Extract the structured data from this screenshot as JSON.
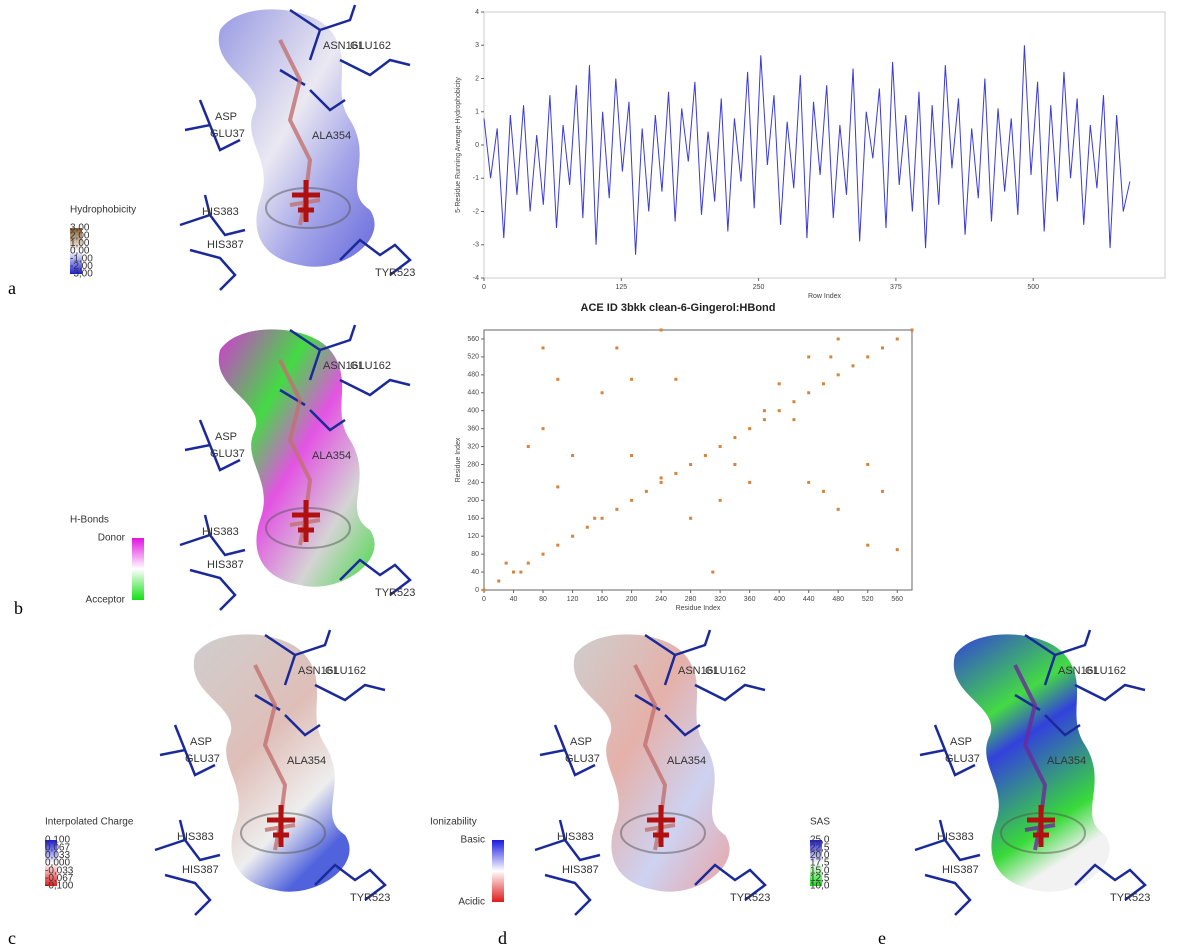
{
  "panels": [
    {
      "letter": "a",
      "legend_title": "Hydrophobicity",
      "legend_labels": [
        "3,00",
        "2,00",
        "1,00",
        "0,00",
        "-1,00",
        "-2,00",
        "-3,00"
      ]
    },
    {
      "letter": "b",
      "legend_title": "H-Bonds",
      "legend_labels": [
        "Donor",
        "Acceptor"
      ]
    },
    {
      "letter": "c",
      "legend_title": "Interpolated Charge",
      "legend_labels": [
        "0,100",
        "0,067",
        "0,033",
        "0,000",
        "-0,033",
        "-0,067",
        "-0,100"
      ]
    },
    {
      "letter": "d",
      "legend_title": "Ionizability",
      "legend_labels": [
        "Basic",
        "Acidic"
      ]
    },
    {
      "letter": "e",
      "legend_title": "SAS",
      "legend_labels": [
        "25,0",
        "22,5",
        "20,0",
        "17,5",
        "15,0",
        "12,5",
        "10,0"
      ]
    }
  ],
  "residue_labels": [
    "ASN161",
    "GLU162",
    "ASP",
    "GLU37",
    "ALA354",
    "HIS383",
    "HIS387",
    "TYR523"
  ],
  "chart_data": [
    {
      "type": "line",
      "x_label": "Row Index",
      "y_label": "5-Residue Running Average Hydrophobicity",
      "color": "#3b3bd6",
      "xlim": [
        0,
        620
      ],
      "xticks": [
        0,
        125,
        250,
        375,
        500
      ],
      "ylim": [
        -4,
        4
      ],
      "yticks": [
        -4,
        -3,
        -2,
        -1,
        0,
        1,
        2,
        3,
        4
      ],
      "x": [
        0,
        6,
        12,
        18,
        24,
        30,
        36,
        42,
        48,
        54,
        60,
        66,
        72,
        78,
        84,
        90,
        96,
        102,
        108,
        114,
        120,
        126,
        132,
        138,
        144,
        150,
        156,
        162,
        168,
        174,
        180,
        186,
        192,
        198,
        204,
        210,
        216,
        222,
        228,
        234,
        240,
        246,
        252,
        258,
        264,
        270,
        276,
        282,
        288,
        294,
        300,
        306,
        312,
        318,
        324,
        330,
        336,
        342,
        348,
        354,
        360,
        366,
        372,
        378,
        384,
        390,
        396,
        402,
        408,
        414,
        420,
        426,
        432,
        438,
        444,
        450,
        456,
        462,
        468,
        474,
        480,
        486,
        492,
        498,
        504,
        510,
        516,
        522,
        528,
        534,
        540,
        546,
        552,
        558,
        564,
        570,
        576,
        582,
        588
      ],
      "values": [
        0.8,
        -1.0,
        0.5,
        -2.8,
        0.9,
        -1.5,
        1.2,
        -2.0,
        0.3,
        -1.8,
        1.5,
        -2.5,
        0.6,
        -1.2,
        1.8,
        -2.2,
        2.4,
        -3.0,
        1.0,
        -1.6,
        2.0,
        -0.8,
        1.3,
        -3.3,
        0.5,
        -2.0,
        0.9,
        -1.4,
        1.6,
        -2.3,
        1.1,
        -0.5,
        1.9,
        -2.1,
        0.4,
        -1.7,
        1.4,
        -2.6,
        0.8,
        -1.1,
        2.2,
        -1.9,
        2.7,
        -0.6,
        1.5,
        -2.4,
        0.7,
        -1.3,
        2.1,
        -2.8,
        1.3,
        -0.9,
        1.8,
        -2.2,
        0.6,
        -1.5,
        2.3,
        -2.9,
        1.0,
        -0.4,
        1.7,
        -2.5,
        2.5,
        -1.2,
        0.9,
        -2.0,
        1.6,
        -3.1,
        1.2,
        -1.8,
        2.4,
        -0.7,
        1.4,
        -2.7,
        0.5,
        -1.6,
        2.0,
        -2.3,
        1.1,
        -1.4,
        0.8,
        -2.1,
        3.0,
        -0.9,
        1.9,
        -2.6,
        1.2,
        -1.7,
        2.2,
        -1.0,
        1.4,
        -2.4,
        0.6,
        -1.3,
        1.5,
        -3.1,
        0.9,
        -2.0,
        -1.1
      ]
    },
    {
      "type": "scatter",
      "title": "ACE ID 3bkk clean-6-Gingerol:HBond",
      "x_label": "Residue Index",
      "y_label": "Residue Index",
      "color": "#d9823a",
      "xlim": [
        0,
        580
      ],
      "xticks": [
        0,
        40,
        80,
        120,
        160,
        200,
        240,
        280,
        320,
        360,
        400,
        440,
        480,
        520,
        560
      ],
      "ylim": [
        0,
        580
      ],
      "yticks": [
        0,
        40,
        80,
        120,
        160,
        200,
        240,
        280,
        320,
        360,
        400,
        440,
        480,
        520,
        560
      ],
      "x": [
        0,
        20,
        40,
        60,
        80,
        100,
        120,
        140,
        160,
        180,
        200,
        220,
        240,
        260,
        280,
        300,
        320,
        340,
        360,
        380,
        400,
        420,
        440,
        460,
        480,
        500,
        520,
        540,
        560,
        580,
        80,
        100,
        180,
        200,
        160,
        260,
        60,
        80,
        120,
        200,
        340,
        320,
        360,
        280,
        440,
        460,
        480,
        520,
        540,
        560,
        520,
        440,
        400,
        420,
        380,
        240,
        150,
        100,
        30,
        50,
        310,
        240,
        470,
        480
      ],
      "values": [
        0,
        20,
        40,
        60,
        80,
        100,
        120,
        140,
        160,
        180,
        200,
        220,
        240,
        260,
        280,
        300,
        320,
        340,
        360,
        380,
        400,
        420,
        440,
        460,
        480,
        500,
        520,
        540,
        560,
        580,
        540,
        470,
        540,
        470,
        440,
        470,
        320,
        360,
        300,
        300,
        280,
        200,
        240,
        160,
        240,
        220,
        180,
        280,
        220,
        90,
        100,
        520,
        460,
        380,
        400,
        250,
        160,
        230,
        60,
        40,
        40,
        580,
        520,
        560
      ]
    }
  ]
}
